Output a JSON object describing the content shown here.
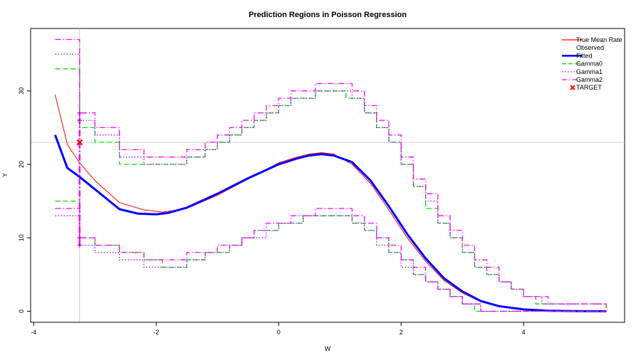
{
  "chart_data": {
    "type": "line",
    "title": "Prediction Regions in Poisson Regression",
    "xlabel": "W",
    "ylabel": "Y",
    "xlim": [
      -4.05,
      5.65
    ],
    "ylim": [
      -1.5,
      38.5
    ],
    "x_ticks": [
      -4,
      -2,
      0,
      2,
      4
    ],
    "y_ticks": [
      0,
      10,
      20,
      30
    ],
    "x_tick_labels": [
      "-4",
      "-2",
      "0",
      "2",
      "4"
    ],
    "y_tick_labels": [
      "0",
      "10",
      "20",
      "30"
    ],
    "reference_lines": {
      "vertical_x": -3.25,
      "horizontal_y": 23
    },
    "legend_position": "top-right",
    "legend": [
      {
        "label": "True Mean Rate",
        "color": "#ff0000",
        "style": "solid-thin"
      },
      {
        "label": "Observed",
        "color": "#000000",
        "style": "none"
      },
      {
        "label": "Fitted",
        "color": "#0000ff",
        "style": "solid-thick"
      },
      {
        "label": "Gamma0",
        "color": "#00dd00",
        "style": "dashed"
      },
      {
        "label": "Gamma1",
        "color": "#9900ff",
        "style": "dotted"
      },
      {
        "label": "Gamma2",
        "color": "#ff00ff",
        "style": "dotdash"
      },
      {
        "label": "TARGET",
        "color": "#ff0000",
        "style": "x-marker"
      }
    ],
    "series": [
      {
        "name": "True Mean Rate",
        "color": "#ff0000",
        "x": [
          -3.65,
          -3.45,
          -3.25,
          -3.0,
          -2.6,
          -2.2,
          -1.9,
          -1.5,
          -1.0,
          -0.5,
          0.0,
          0.3,
          0.5,
          0.7,
          0.9,
          1.2,
          1.5,
          1.8,
          2.1,
          2.4,
          2.7,
          3.0,
          3.3,
          3.6,
          4.0,
          4.4,
          4.8,
          5.35
        ],
        "y": [
          29.5,
          22.7,
          20.2,
          17.8,
          14.8,
          13.8,
          13.5,
          14.0,
          15.8,
          18.0,
          20.2,
          21.0,
          21.4,
          21.6,
          21.4,
          20.0,
          17.4,
          13.8,
          10.0,
          6.8,
          4.2,
          2.5,
          1.3,
          0.6,
          0.2,
          0.06,
          0.02,
          0.0
        ]
      },
      {
        "name": "Fitted",
        "color": "#0000ff",
        "x": [
          -3.65,
          -3.45,
          -3.25,
          -3.0,
          -2.6,
          -2.3,
          -2.0,
          -1.8,
          -1.5,
          -1.0,
          -0.5,
          0.0,
          0.3,
          0.5,
          0.7,
          0.9,
          1.2,
          1.5,
          1.8,
          2.1,
          2.4,
          2.7,
          3.0,
          3.3,
          3.6,
          4.0,
          4.4,
          4.8,
          5.35
        ],
        "y": [
          24.0,
          19.5,
          18.3,
          16.6,
          13.9,
          13.3,
          13.2,
          13.4,
          14.1,
          16.0,
          18.1,
          20.0,
          20.8,
          21.2,
          21.4,
          21.2,
          20.3,
          17.8,
          14.3,
          10.5,
          7.2,
          4.5,
          2.7,
          1.4,
          0.7,
          0.25,
          0.08,
          0.02,
          0.0
        ]
      },
      {
        "name": "Gamma0 upper",
        "color": "#00dd00",
        "x": [
          -3.65,
          -3.25,
          -3.0,
          -2.6,
          -2.2,
          -1.9,
          -1.5,
          -1.2,
          -1.0,
          -0.8,
          -0.6,
          -0.4,
          -0.2,
          0.0,
          0.2,
          0.4,
          0.6,
          0.8,
          1.0,
          1.1,
          1.2,
          1.4,
          1.6,
          1.8,
          2.0,
          2.2,
          2.4,
          2.6,
          2.8,
          3.0,
          3.2,
          3.4,
          3.6,
          3.8,
          4.0,
          4.2,
          4.5,
          5.35
        ],
        "y": [
          33,
          25,
          23,
          20,
          20,
          20,
          21,
          22,
          23,
          24,
          25,
          26,
          27,
          28,
          29,
          29,
          30,
          30,
          30,
          29,
          29,
          27,
          25,
          23,
          20,
          17,
          14,
          12,
          10,
          8,
          6,
          5,
          4,
          3,
          2,
          1,
          1,
          0
        ]
      },
      {
        "name": "Gamma0 lower",
        "color": "#00dd00",
        "x": [
          -3.65,
          -3.25,
          -3.0,
          -2.6,
          -2.2,
          -1.9,
          -1.5,
          -1.2,
          -1.0,
          -0.8,
          -0.6,
          -0.4,
          -0.2,
          0.0,
          0.2,
          0.4,
          0.6,
          0.8,
          1.0,
          1.2,
          1.4,
          1.6,
          1.8,
          2.0,
          2.2,
          2.4,
          2.6,
          2.8,
          3.0,
          3.2,
          3.5,
          5.35
        ],
        "y": [
          15,
          10,
          9,
          8,
          7,
          6,
          7,
          8,
          8,
          9,
          10,
          11,
          11,
          12,
          12,
          13,
          13,
          13,
          13,
          12,
          11,
          10,
          8,
          7,
          5,
          4,
          3,
          2,
          1,
          0,
          0,
          0
        ]
      },
      {
        "name": "Gamma1 upper",
        "color": "#9900ff",
        "x": [
          -3.65,
          -3.25,
          -3.0,
          -2.6,
          -2.2,
          -1.9,
          -1.5,
          -1.2,
          -1.0,
          -0.8,
          -0.6,
          -0.4,
          -0.2,
          0.0,
          0.2,
          0.4,
          0.6,
          0.8,
          1.0,
          1.2,
          1.4,
          1.6,
          1.8,
          2.0,
          2.2,
          2.4,
          2.6,
          2.8,
          3.0,
          3.2,
          3.4,
          3.6,
          3.8,
          4.0,
          4.3,
          5.35
        ],
        "y": [
          35,
          26,
          24,
          21,
          20,
          20,
          21,
          22,
          23,
          24,
          25,
          26,
          27,
          28,
          29,
          29,
          30,
          30,
          30,
          29,
          27,
          25,
          23,
          20,
          17,
          15,
          12,
          10,
          8,
          6,
          5,
          4,
          3,
          2,
          1,
          0
        ]
      },
      {
        "name": "Gamma1 lower",
        "color": "#9900ff",
        "x": [
          -3.65,
          -3.25,
          -3.0,
          -2.6,
          -2.2,
          -1.9,
          -1.5,
          -1.2,
          -1.0,
          -0.8,
          -0.6,
          -0.4,
          -0.2,
          0.0,
          0.2,
          0.4,
          0.6,
          0.8,
          1.0,
          1.2,
          1.4,
          1.6,
          1.8,
          2.0,
          2.2,
          2.4,
          2.6,
          2.8,
          3.0,
          3.3,
          5.35
        ],
        "y": [
          13,
          9,
          8,
          7,
          6,
          6,
          7,
          8,
          8,
          9,
          10,
          10,
          11,
          12,
          12,
          13,
          13,
          13,
          13,
          12,
          11,
          9,
          8,
          6,
          5,
          4,
          3,
          2,
          1,
          0,
          0
        ]
      },
      {
        "name": "Gamma2 upper",
        "color": "#ff00ff",
        "x": [
          -3.65,
          -3.25,
          -3.0,
          -2.6,
          -2.2,
          -1.9,
          -1.5,
          -1.2,
          -1.0,
          -0.8,
          -0.6,
          -0.4,
          -0.2,
          0.0,
          0.2,
          0.4,
          0.6,
          0.8,
          1.0,
          1.2,
          1.4,
          1.6,
          1.8,
          2.0,
          2.2,
          2.4,
          2.6,
          2.8,
          3.0,
          3.2,
          3.4,
          3.6,
          3.8,
          4.0,
          4.4,
          5.35
        ],
        "y": [
          37,
          27,
          25,
          22,
          21,
          21,
          22,
          23,
          24,
          25,
          26,
          27,
          28,
          29,
          30,
          30,
          31,
          31,
          31,
          30,
          28,
          26,
          24,
          21,
          18,
          16,
          13,
          11,
          9,
          7,
          6,
          4,
          3,
          2,
          1,
          1
        ]
      },
      {
        "name": "Gamma2 lower",
        "color": "#ff00ff",
        "x": [
          -3.65,
          -3.25,
          -3.0,
          -2.6,
          -2.2,
          -1.9,
          -1.5,
          -1.2,
          -1.0,
          -0.8,
          -0.6,
          -0.4,
          -0.2,
          0.0,
          0.2,
          0.4,
          0.6,
          0.8,
          1.0,
          1.2,
          1.4,
          1.6,
          1.8,
          2.0,
          2.2,
          2.4,
          2.6,
          2.8,
          3.0,
          3.3,
          5.35
        ],
        "y": [
          14,
          10,
          9,
          8,
          7,
          7,
          8,
          8,
          9,
          9,
          10,
          11,
          12,
          12,
          13,
          13,
          14,
          14,
          14,
          13,
          12,
          10,
          9,
          7,
          6,
          4,
          3,
          2,
          1,
          0,
          0
        ]
      }
    ],
    "target": {
      "x": -3.25,
      "y": 23,
      "color": "#ff0000"
    },
    "target_interval": {
      "x": -3.25,
      "ymin": 9,
      "ymax": 27,
      "color": "#ff00ff"
    }
  }
}
